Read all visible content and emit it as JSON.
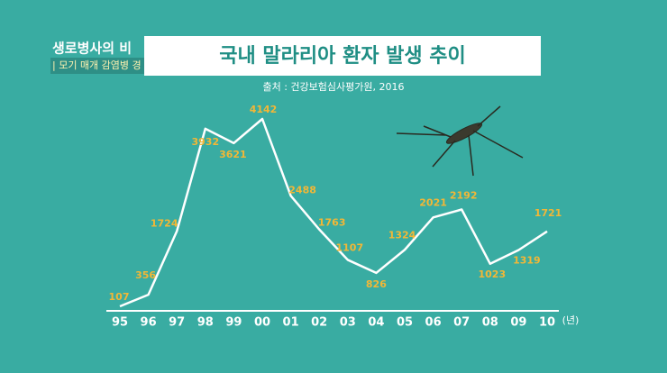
{
  "program": {
    "name": "생로병사의 비",
    "episode": "| 모기 매개 감염병 경"
  },
  "chart_data": {
    "type": "line",
    "title": "국내 말라리아 환자 발생 추이",
    "subtitle": "출처 : 건강보험심사평가원, 2016",
    "x_label": "(년)",
    "categories": [
      "95",
      "96",
      "97",
      "98",
      "99",
      "00",
      "01",
      "02",
      "03",
      "04",
      "05",
      "06",
      "07",
      "08",
      "09",
      "10"
    ],
    "values": [
      107,
      356,
      1724,
      3932,
      3621,
      4142,
      2488,
      1763,
      1107,
      826,
      1324,
      2021,
      2192,
      1023,
      1319,
      1721
    ],
    "color": "#ffffff",
    "label_color": "#f2b736"
  }
}
